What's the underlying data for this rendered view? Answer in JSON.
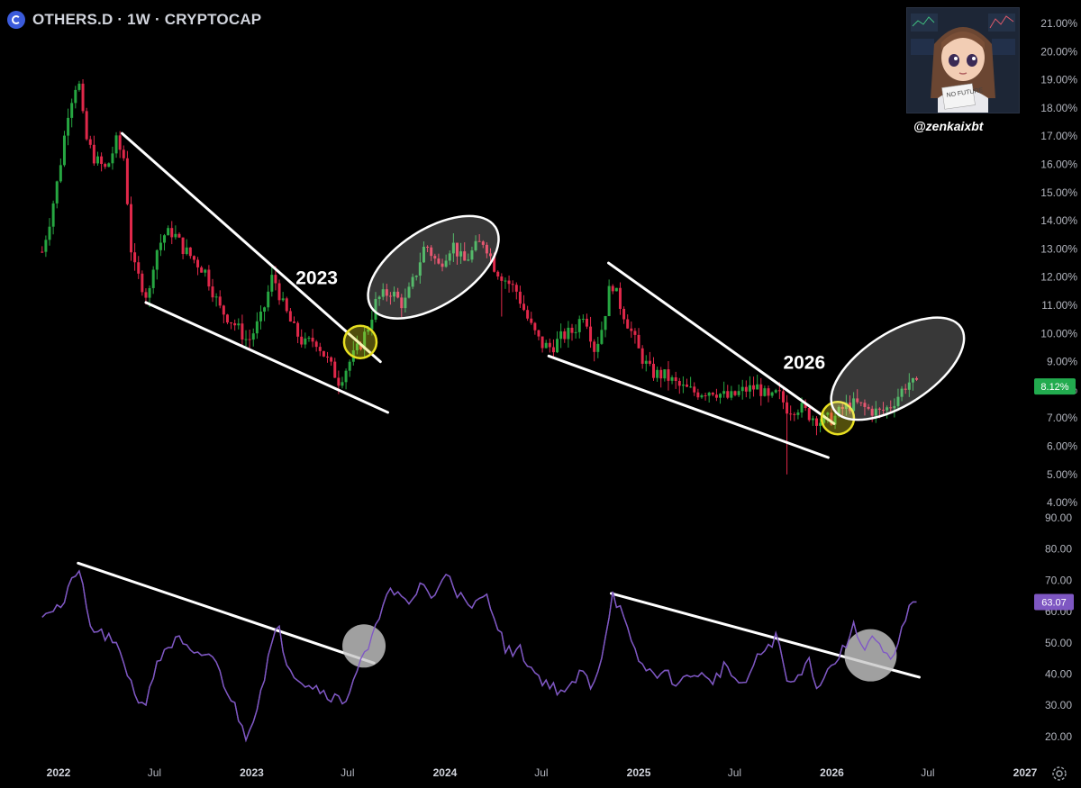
{
  "header": {
    "title": "OTHERS.D · 1W · CRYPTOCAP",
    "logo_icon": "cryptocap-logo-icon"
  },
  "author": {
    "handle": "@zenkaixbt",
    "sign_text": "NO FUTURE",
    "avatar_icon": "anime-avatar-icon"
  },
  "colors": {
    "background": "#000000",
    "up": "#26a641",
    "down": "#e0284a",
    "rsi": "#7e57c2",
    "price_badge": "#22ab4f",
    "rsi_badge": "#7e57c2",
    "trendline": "#ffffff",
    "highlight_yellow": "#e8e021"
  },
  "chart_data": [
    {
      "type": "candlestick",
      "title": "OTHERS.D · 1W · CRYPTOCAP",
      "yscale": "linear",
      "ylim": [
        4.0,
        21.0
      ],
      "y_ticks": [
        "21.00%",
        "20.00%",
        "19.00%",
        "18.00%",
        "17.00%",
        "16.00%",
        "15.00%",
        "14.00%",
        "13.00%",
        "12.00%",
        "11.00%",
        "10.00%",
        "9.00%",
        "8.00%",
        "7.00%",
        "6.00%",
        "5.00%",
        "4.00%"
      ],
      "x_tick_labels": [
        "2022",
        "Jul",
        "2023",
        "Jul",
        "2024",
        "Jul",
        "2025",
        "Jul",
        "2026",
        "Jul",
        "2027"
      ],
      "current_value": 8.12,
      "current_label": "8.12%",
      "anchors": [
        [
          "2021-12-01",
          12.9
        ],
        [
          "2021-12-15",
          14.0
        ],
        [
          "2022-01-01",
          15.6
        ],
        [
          "2022-01-20",
          18.0
        ],
        [
          "2022-02-07",
          19.1
        ],
        [
          "2022-02-20",
          17.0
        ],
        [
          "2022-03-10",
          16.2
        ],
        [
          "2022-04-01",
          15.8
        ],
        [
          "2022-04-20",
          16.8
        ],
        [
          "2022-05-05",
          16.2
        ],
        [
          "2022-05-20",
          12.5
        ],
        [
          "2022-06-01",
          12.0
        ],
        [
          "2022-06-20",
          11.2
        ],
        [
          "2022-07-01",
          12.8
        ],
        [
          "2022-07-20",
          13.5
        ],
        [
          "2022-08-05",
          13.6
        ],
        [
          "2022-08-25",
          13.0
        ],
        [
          "2022-09-15",
          12.6
        ],
        [
          "2022-10-05",
          12.2
        ],
        [
          "2022-11-01",
          10.9
        ],
        [
          "2022-12-01",
          10.3
        ],
        [
          "2022-12-25",
          9.7
        ],
        [
          "2023-01-20",
          10.6
        ],
        [
          "2023-02-10",
          12.1
        ],
        [
          "2023-03-01",
          11.0
        ],
        [
          "2023-03-20",
          10.2
        ],
        [
          "2023-04-10",
          9.6
        ],
        [
          "2023-05-01",
          9.8
        ],
        [
          "2023-05-25",
          9.0
        ],
        [
          "2023-06-15",
          8.3
        ],
        [
          "2023-07-05",
          9.0
        ],
        [
          "2023-07-25",
          9.6
        ],
        [
          "2023-08-10",
          10.3
        ],
        [
          "2023-08-25",
          11.2
        ],
        [
          "2023-09-20",
          11.5
        ],
        [
          "2023-10-15",
          11.0
        ],
        [
          "2023-11-05",
          12.0
        ],
        [
          "2023-11-25",
          13.2
        ],
        [
          "2023-12-20",
          12.4
        ],
        [
          "2024-01-15",
          13.2
        ],
        [
          "2024-02-05",
          12.5
        ],
        [
          "2024-03-01",
          13.1
        ],
        [
          "2024-03-15",
          13.3
        ],
        [
          "2024-04-05",
          12.3
        ],
        [
          "2024-04-25",
          11.9
        ],
        [
          "2024-05-15",
          11.5
        ],
        [
          "2024-06-10",
          10.3
        ],
        [
          "2024-07-01",
          9.6
        ],
        [
          "2024-07-20",
          9.5
        ],
        [
          "2024-08-10",
          9.9
        ],
        [
          "2024-09-01",
          10.1
        ],
        [
          "2024-09-20",
          10.8
        ],
        [
          "2024-10-10",
          9.4
        ],
        [
          "2024-10-25",
          10.3
        ],
        [
          "2024-11-10",
          11.9
        ],
        [
          "2024-11-25",
          11.1
        ],
        [
          "2024-12-15",
          10.2
        ],
        [
          "2025-01-05",
          9.2
        ],
        [
          "2025-01-25",
          8.6
        ],
        [
          "2025-02-20",
          8.5
        ],
        [
          "2025-03-20",
          8.1
        ],
        [
          "2025-04-20",
          7.9
        ],
        [
          "2025-05-20",
          8.0
        ],
        [
          "2025-06-20",
          7.7
        ],
        [
          "2025-07-20",
          8.0
        ],
        [
          "2025-08-15",
          8.1
        ],
        [
          "2025-09-05",
          7.6
        ],
        [
          "2025-09-20",
          7.9
        ],
        [
          "2025-10-10",
          7.3
        ],
        [
          "2025-11-01",
          7.4
        ],
        [
          "2025-11-20",
          7.1
        ],
        [
          "2025-12-10",
          6.9
        ],
        [
          "2026-01-05",
          7.0
        ],
        [
          "2026-01-25",
          7.4
        ],
        [
          "2026-02-15",
          7.5
        ],
        [
          "2026-03-10",
          7.3
        ],
        [
          "2026-04-01",
          7.2
        ],
        [
          "2026-04-20",
          7.4
        ],
        [
          "2026-05-10",
          7.9
        ],
        [
          "2026-05-25",
          8.3
        ],
        [
          "2026-06-10",
          8.12
        ]
      ],
      "spikes": [
        {
          "date": "2024-04-15",
          "low": 10.6
        },
        {
          "date": "2025-10-10",
          "low": 5.0
        }
      ]
    },
    {
      "type": "line",
      "series": [
        {
          "name": "RSI",
          "values_ref": "anchors"
        }
      ],
      "ylim": [
        15.0,
        90.0
      ],
      "y_ticks": [
        "90.00",
        "80.00",
        "70.00",
        "60.00",
        "50.00",
        "40.00",
        "30.00",
        "20.00"
      ],
      "current_value": 63.07,
      "current_label": "63.07",
      "anchors": [
        [
          "2021-12-01",
          60
        ],
        [
          "2022-01-10",
          62
        ],
        [
          "2022-02-07",
          75
        ],
        [
          "2022-03-01",
          55
        ],
        [
          "2022-04-01",
          52
        ],
        [
          "2022-05-01",
          46
        ],
        [
          "2022-05-20",
          36
        ],
        [
          "2022-06-10",
          29
        ],
        [
          "2022-06-25",
          38
        ],
        [
          "2022-07-20",
          48
        ],
        [
          "2022-08-15",
          51
        ],
        [
          "2022-09-15",
          45
        ],
        [
          "2022-10-15",
          47
        ],
        [
          "2022-11-10",
          37
        ],
        [
          "2022-12-01",
          29
        ],
        [
          "2022-12-20",
          20
        ],
        [
          "2023-01-10",
          29
        ],
        [
          "2023-02-05",
          48
        ],
        [
          "2023-02-20",
          55
        ],
        [
          "2023-03-10",
          43
        ],
        [
          "2023-04-05",
          38
        ],
        [
          "2023-05-01",
          36
        ],
        [
          "2023-06-01",
          33
        ],
        [
          "2023-06-25",
          31
        ],
        [
          "2023-07-20",
          42
        ],
        [
          "2023-08-10",
          48
        ],
        [
          "2023-08-25",
          55
        ],
        [
          "2023-09-10",
          67
        ],
        [
          "2023-10-01",
          65
        ],
        [
          "2023-10-25",
          62
        ],
        [
          "2023-11-20",
          70
        ],
        [
          "2023-12-10",
          63
        ],
        [
          "2024-01-05",
          74
        ],
        [
          "2024-01-25",
          66
        ],
        [
          "2024-02-20",
          60
        ],
        [
          "2024-03-15",
          66
        ],
        [
          "2024-04-05",
          59
        ],
        [
          "2024-04-25",
          47
        ],
        [
          "2024-05-20",
          48
        ],
        [
          "2024-06-20",
          40
        ],
        [
          "2024-07-20",
          36
        ],
        [
          "2024-08-20",
          34
        ],
        [
          "2024-09-15",
          41
        ],
        [
          "2024-10-05",
          36
        ],
        [
          "2024-10-25",
          47
        ],
        [
          "2024-11-12",
          66
        ],
        [
          "2024-12-01",
          59
        ],
        [
          "2024-12-20",
          48
        ],
        [
          "2025-01-15",
          41
        ],
        [
          "2025-02-20",
          40
        ],
        [
          "2025-03-20",
          37
        ],
        [
          "2025-04-20",
          41
        ],
        [
          "2025-05-15",
          37
        ],
        [
          "2025-06-15",
          43
        ],
        [
          "2025-07-15",
          35
        ],
        [
          "2025-08-10",
          44
        ],
        [
          "2025-09-01",
          49
        ],
        [
          "2025-09-20",
          52
        ],
        [
          "2025-10-10",
          36
        ],
        [
          "2025-10-30",
          39
        ],
        [
          "2025-11-15",
          46
        ],
        [
          "2025-12-05",
          36
        ],
        [
          "2026-01-01",
          43
        ],
        [
          "2026-01-20",
          47
        ],
        [
          "2026-02-10",
          55
        ],
        [
          "2026-03-01",
          49
        ],
        [
          "2026-03-20",
          52
        ],
        [
          "2026-04-10",
          46
        ],
        [
          "2026-04-25",
          43
        ],
        [
          "2026-05-10",
          52
        ],
        [
          "2026-05-25",
          60
        ],
        [
          "2026-06-10",
          63.07
        ]
      ]
    }
  ],
  "annotations": {
    "label_2023": "2023",
    "label_2026": "2026"
  }
}
